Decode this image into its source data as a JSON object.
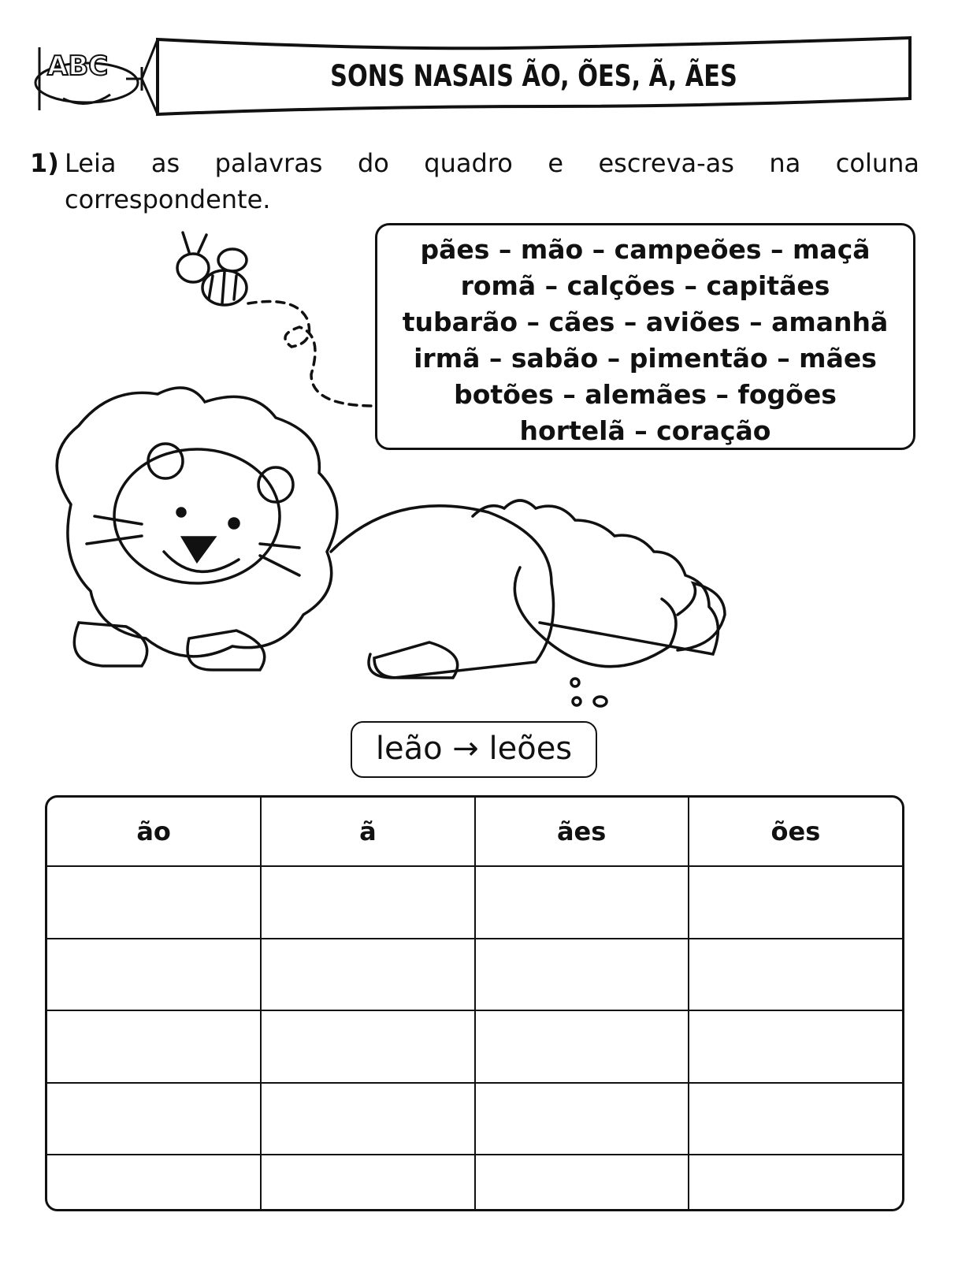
{
  "header": {
    "title": "SONS NASAIS ÃO, ÕES, Ã, ÃES",
    "logo_text": "ABC"
  },
  "question": {
    "number": "1)",
    "line1": "Leia as palavras do quadro e escreva-as na coluna",
    "line2": "correspondente."
  },
  "word_box": {
    "lines": [
      "pães – mão – campeões – maçã",
      "romã – calções – capitães",
      "tubarão – cães – aviões – amanhã",
      "irmã – sabão – pimentão – mães",
      "botões – alemães – fogões",
      "hortelã – coração"
    ]
  },
  "example": "leão → leões",
  "table": {
    "headers": [
      "ão",
      "ã",
      "ães",
      "ões"
    ],
    "rows": [
      [
        "",
        "",
        "",
        ""
      ],
      [
        "",
        "",
        "",
        ""
      ],
      [
        "",
        "",
        "",
        ""
      ],
      [
        "",
        "",
        "",
        ""
      ],
      [
        "",
        "",
        "",
        ""
      ]
    ]
  }
}
